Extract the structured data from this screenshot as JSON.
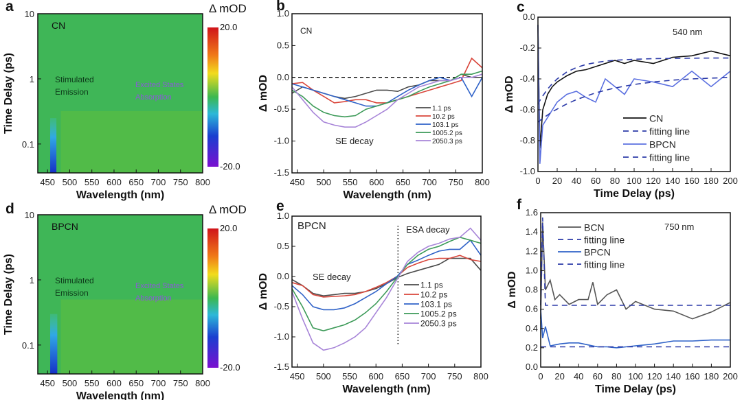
{
  "chart_data": [
    {
      "id": "a",
      "type": "heatmap",
      "panel_label": "a",
      "sample": "CN",
      "xlabel": "Wavelength (nm)",
      "ylabel": "Time Delay (ps)",
      "xlim": [
        428,
        800
      ],
      "ylim": [
        0.036,
        10
      ],
      "yscale": "log",
      "xticks": [
        "450",
        "500",
        "550",
        "600",
        "650",
        "700",
        "750",
        "800"
      ],
      "yticks": [
        "0.1",
        "1",
        "10"
      ],
      "colorbar": {
        "title": "Δ mOD",
        "max": "20.0",
        "min": "-20.0",
        "range": [
          -20,
          20
        ]
      },
      "annotations": {
        "se": [
          "Stimulated",
          "Emission"
        ],
        "esa": [
          "Excited States",
          "Absorption"
        ]
      },
      "features": {
        "se_band_nm": [
          456,
          470
        ],
        "se_band_until_ps": 0.25,
        "esa_region_until_ps": 0.32
      }
    },
    {
      "id": "b",
      "type": "line",
      "panel_label": "b",
      "sample": "CN",
      "xlabel": "Wavelength (nm)",
      "ylabel": "Δ mOD",
      "xlim": [
        440,
        800
      ],
      "ylim": [
        -1.5,
        1.0
      ],
      "xticks": [
        "450",
        "500",
        "550",
        "600",
        "650",
        "700",
        "750",
        "800"
      ],
      "yticks": [
        "-1.5",
        "-1.0",
        "-0.5",
        "0.0",
        "0.5",
        "1.0"
      ],
      "annotation": "SE decay",
      "x": [
        440,
        460,
        480,
        500,
        520,
        540,
        560,
        580,
        600,
        620,
        640,
        660,
        680,
        700,
        720,
        740,
        760,
        780,
        800
      ],
      "series": [
        {
          "name": "1.1 ps",
          "color": "#4a4a4a",
          "values": [
            -0.25,
            -0.15,
            -0.2,
            -0.25,
            -0.3,
            -0.33,
            -0.3,
            -0.25,
            -0.2,
            -0.2,
            -0.22,
            -0.15,
            -0.12,
            -0.05,
            -0.05,
            -0.05,
            0.05,
            0,
            0
          ]
        },
        {
          "name": "10.2 ps",
          "color": "#d9453a",
          "values": [
            -0.1,
            -0.08,
            -0.2,
            -0.3,
            -0.4,
            -0.38,
            -0.35,
            -0.35,
            -0.4,
            -0.4,
            -0.35,
            -0.3,
            -0.25,
            -0.2,
            -0.15,
            -0.1,
            -0.05,
            0.3,
            0.15
          ]
        },
        {
          "name": "103.1 ps",
          "color": "#2f62c8",
          "values": [
            -0.1,
            -0.15,
            -0.2,
            -0.25,
            -0.3,
            -0.35,
            -0.4,
            -0.45,
            -0.45,
            -0.4,
            -0.3,
            -0.2,
            -0.12,
            -0.05,
            0,
            -0.05,
            0,
            -0.3,
            0
          ]
        },
        {
          "name": "1005.2 ps",
          "color": "#3c9a58",
          "values": [
            -0.2,
            -0.3,
            -0.45,
            -0.55,
            -0.6,
            -0.62,
            -0.6,
            -0.5,
            -0.45,
            -0.4,
            -0.35,
            -0.3,
            -0.22,
            -0.15,
            -0.1,
            -0.05,
            0.05,
            0.05,
            0.1
          ]
        },
        {
          "name": "2050.3 ps",
          "color": "#a784d8",
          "values": [
            -0.15,
            -0.35,
            -0.55,
            -0.7,
            -0.75,
            -0.78,
            -0.78,
            -0.7,
            -0.6,
            -0.5,
            -0.35,
            -0.25,
            -0.15,
            -0.1,
            -0.05,
            -0.05,
            0,
            0,
            0.05
          ]
        }
      ],
      "reference_line": 0
    },
    {
      "id": "c",
      "type": "line",
      "panel_label": "c",
      "annotation": "540 nm",
      "xlabel": "Time Delay (ps)",
      "ylabel": "Δ mOD",
      "xlim": [
        0,
        200
      ],
      "ylim": [
        -1.0,
        0.0
      ],
      "xticks": [
        "0",
        "20",
        "40",
        "60",
        "80",
        "100",
        "120",
        "140",
        "160",
        "180",
        "200"
      ],
      "yticks": [
        "-1.0",
        "-0.8",
        "-0.6",
        "-0.4",
        "-0.2",
        "0.0"
      ],
      "x": [
        0,
        2,
        5,
        10,
        15,
        20,
        30,
        40,
        50,
        60,
        70,
        80,
        90,
        100,
        120,
        140,
        160,
        180,
        200
      ],
      "series": [
        {
          "name": "CN",
          "color": "#111111",
          "dash": false,
          "values": [
            -0.05,
            -0.85,
            -0.6,
            -0.5,
            -0.45,
            -0.42,
            -0.38,
            -0.35,
            -0.34,
            -0.32,
            -0.3,
            -0.28,
            -0.3,
            -0.28,
            -0.3,
            -0.26,
            -0.25,
            -0.22,
            -0.25
          ]
        },
        {
          "name": "fitting line",
          "color": "#2b3aa8",
          "dash": true,
          "values": [
            -0.565,
            -0.54,
            -0.51,
            -0.466,
            -0.43,
            -0.4,
            -0.355,
            -0.326,
            -0.306,
            -0.294,
            -0.285,
            -0.279,
            -0.276,
            -0.273,
            -0.269,
            -0.267,
            -0.266,
            -0.265,
            -0.265
          ]
        },
        {
          "name": "BPCN",
          "color": "#5a6fe0",
          "dash": false,
          "values": [
            -0.05,
            -0.95,
            -0.7,
            -0.65,
            -0.6,
            -0.55,
            -0.5,
            -0.48,
            -0.52,
            -0.55,
            -0.4,
            -0.45,
            -0.5,
            -0.4,
            -0.42,
            -0.45,
            -0.35,
            -0.45,
            -0.35
          ]
        },
        {
          "name": "fitting line",
          "color": "#2b3aa8",
          "dash": true,
          "values": [
            -0.68,
            -0.67,
            -0.655,
            -0.634,
            -0.613,
            -0.595,
            -0.562,
            -0.534,
            -0.512,
            -0.49,
            -0.474,
            -0.459,
            -0.447,
            -0.436,
            -0.42,
            -0.408,
            -0.4,
            -0.395,
            -0.39
          ]
        }
      ]
    },
    {
      "id": "d",
      "type": "heatmap",
      "panel_label": "d",
      "sample": "BPCN",
      "xlabel": "Wavelength (nm)",
      "ylabel": "Time Delay (ps)",
      "xlim": [
        428,
        800
      ],
      "ylim": [
        0.036,
        10
      ],
      "yscale": "log",
      "xticks": [
        "450",
        "500",
        "550",
        "600",
        "650",
        "700",
        "750",
        "800"
      ],
      "yticks": [
        "0.1",
        "1",
        "10"
      ],
      "colorbar": {
        "title": "Δ mOD",
        "max": "20.0",
        "min": "-20.0",
        "range": [
          -20,
          20
        ]
      },
      "annotations": {
        "se": [
          "Stimulated",
          "Emission"
        ],
        "esa": [
          "Excited States",
          "Absorption"
        ]
      },
      "features": {
        "se_band_nm": [
          456,
          472
        ],
        "se_band_until_ps": 0.3,
        "esa_region_until_ps": 0.5
      }
    },
    {
      "id": "e",
      "type": "line",
      "panel_label": "e",
      "sample": "BPCN",
      "xlabel": "Wavelength (nm)",
      "ylabel": "Δ mOD",
      "xlim": [
        440,
        800
      ],
      "ylim": [
        -1.5,
        1.0
      ],
      "xticks": [
        "450",
        "500",
        "550",
        "600",
        "650",
        "700",
        "750",
        "800"
      ],
      "yticks": [
        "-1.5",
        "-1.0",
        "-0.5",
        "0.0",
        "0.5",
        "1.0"
      ],
      "annotations": [
        "SE decay",
        "ESA decay"
      ],
      "divider_x": 642,
      "x": [
        440,
        460,
        480,
        500,
        520,
        540,
        560,
        580,
        600,
        620,
        640,
        660,
        680,
        700,
        720,
        740,
        760,
        780,
        800
      ],
      "series": [
        {
          "name": "1.1 ps",
          "color": "#4a4a4a",
          "values": [
            -0.05,
            -0.15,
            -0.28,
            -0.32,
            -0.3,
            -0.28,
            -0.28,
            -0.25,
            -0.2,
            -0.12,
            -0.02,
            0.05,
            0.1,
            0.15,
            0.2,
            0.3,
            0.3,
            0.3,
            0.1
          ]
        },
        {
          "name": "10.2 ps",
          "color": "#d9453a",
          "values": [
            -0.1,
            -0.15,
            -0.3,
            -0.34,
            -0.33,
            -0.32,
            -0.3,
            -0.25,
            -0.18,
            -0.1,
            0,
            0.15,
            0.22,
            0.28,
            0.3,
            0.3,
            0.35,
            0.28,
            0.25
          ]
        },
        {
          "name": "103.1 ps",
          "color": "#2f62c8",
          "values": [
            -0.15,
            -0.3,
            -0.5,
            -0.55,
            -0.55,
            -0.52,
            -0.45,
            -0.35,
            -0.25,
            -0.12,
            0,
            0.2,
            0.27,
            0.35,
            0.42,
            0.45,
            0.45,
            0.6,
            0.35
          ]
        },
        {
          "name": "1005.2 ps",
          "color": "#3c9a58",
          "values": [
            -0.2,
            -0.5,
            -0.85,
            -0.9,
            -0.85,
            -0.8,
            -0.72,
            -0.6,
            -0.45,
            -0.25,
            -0.02,
            0.2,
            0.35,
            0.45,
            0.5,
            0.58,
            0.65,
            0.6,
            0.55
          ]
        },
        {
          "name": "2050.3 ps",
          "color": "#a784d8",
          "values": [
            -0.25,
            -0.7,
            -1.1,
            -1.22,
            -1.18,
            -1.1,
            -1.0,
            -0.85,
            -0.6,
            -0.35,
            -0.05,
            0.25,
            0.4,
            0.5,
            0.55,
            0.62,
            0.65,
            0.8,
            0.6
          ]
        }
      ]
    },
    {
      "id": "f",
      "type": "line",
      "panel_label": "f",
      "annotation": "750 nm",
      "xlabel": "Time Delay (ps)",
      "ylabel": "Δ mOD",
      "xlim": [
        0,
        200
      ],
      "ylim": [
        0,
        1.6
      ],
      "xticks": [
        "0",
        "20",
        "40",
        "60",
        "80",
        "100",
        "120",
        "140",
        "160",
        "180",
        "200"
      ],
      "yticks": [
        "0.0",
        "0.2",
        "0.4",
        "0.6",
        "0.8",
        "1.0",
        "1.2",
        "1.4",
        "1.6"
      ],
      "x": [
        0,
        2,
        5,
        10,
        15,
        20,
        30,
        40,
        50,
        55,
        60,
        70,
        80,
        90,
        100,
        120,
        140,
        160,
        180,
        200
      ],
      "series": [
        {
          "name": "BCN",
          "color": "#555555",
          "dash": false,
          "values": [
            0.5,
            1.5,
            0.8,
            0.9,
            0.7,
            0.75,
            0.65,
            0.7,
            0.7,
            0.88,
            0.65,
            0.75,
            0.8,
            0.6,
            0.68,
            0.6,
            0.58,
            0.5,
            0.57,
            0.67
          ]
        },
        {
          "name": "fitting line",
          "color": "#2b3aa8",
          "dash": true,
          "values": [
            0.64,
            1.55,
            0.64,
            0.64,
            0.64,
            0.64,
            0.64,
            0.64,
            0.64,
            0.64,
            0.64,
            0.64,
            0.64,
            0.64,
            0.64,
            0.64,
            0.64,
            0.64,
            0.64,
            0.64
          ]
        },
        {
          "name": "BPCN",
          "color": "#2f62c8",
          "dash": false,
          "values": [
            0.6,
            0.3,
            0.42,
            0.22,
            0.23,
            0.24,
            0.25,
            0.25,
            0.23,
            0.22,
            0.21,
            0.21,
            0.2,
            0.21,
            0.22,
            0.24,
            0.27,
            0.27,
            0.28,
            0.28
          ]
        },
        {
          "name": "fitting line",
          "color": "#2b3aa8",
          "dash": true,
          "values": [
            0.21,
            0.21,
            0.21,
            0.21,
            0.21,
            0.21,
            0.21,
            0.21,
            0.21,
            0.21,
            0.21,
            0.21,
            0.21,
            0.21,
            0.21,
            0.21,
            0.21,
            0.21,
            0.21,
            0.21
          ]
        }
      ]
    }
  ]
}
